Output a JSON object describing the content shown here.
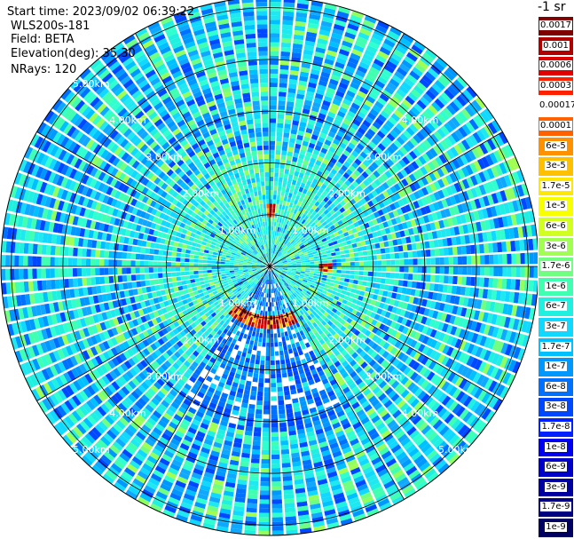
{
  "header": {
    "start_time": "Start time: 2023/09/02 06:39:22",
    "instrument": "WLS200s-181",
    "field": "Field: BETA",
    "elevation": "Elevation(deg): 35.30",
    "nrays": "NRays: 120"
  },
  "chart_data": {
    "type": "heatmap",
    "projection": "polar-ppi",
    "nrays": 120,
    "range_rings_km": [
      "1.00km",
      "2.00km",
      "3.00km",
      "4.00km",
      "5.00km"
    ],
    "max_range_km": 5.2,
    "unit_label": "-1 sr",
    "colorbar": {
      "labels": [
        "0.0017",
        "0.001",
        "0.0006",
        "0.0003",
        "0.00017",
        "0.0001",
        "6e-5",
        "3e-5",
        "1.7e-5",
        "1e-5",
        "6e-6",
        "3e-6",
        "1.7e-6",
        "1e-6",
        "6e-7",
        "3e-7",
        "1.7e-7",
        "1e-7",
        "6e-8",
        "3e-8",
        "1.7e-8",
        "1e-8",
        "6e-9",
        "3e-9",
        "1.7e-9",
        "1e-9"
      ],
      "colors": [
        "#800000",
        "#b00000",
        "#e00000",
        "#ff2000",
        "#ffffff",
        "#ff6000",
        "#ff9000",
        "#ffc000",
        "#ffe800",
        "#f8ff00",
        "#d0ff20",
        "#a0ff50",
        "#70ff80",
        "#40ffb0",
        "#20f0e0",
        "#10d8ff",
        "#00c0ff",
        "#0098ff",
        "#0070ff",
        "#0048ff",
        "#0020ff",
        "#0000f0",
        "#0000c8",
        "#0000a0",
        "#000080",
        "#000060"
      ]
    }
  }
}
